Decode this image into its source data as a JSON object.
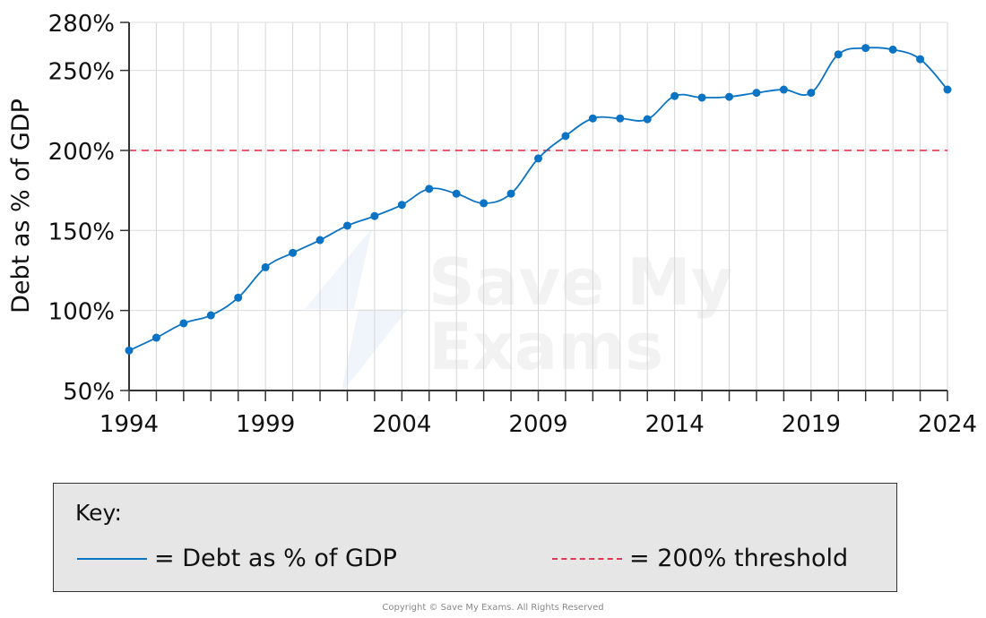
{
  "chart_data": {
    "type": "line",
    "title": "",
    "xlabel": "",
    "ylabel": "Debt as % of GDP",
    "x": [
      1994,
      1995,
      1996,
      1997,
      1998,
      1999,
      2000,
      2001,
      2002,
      2003,
      2004,
      2005,
      2006,
      2007,
      2008,
      2009,
      2010,
      2011,
      2012,
      2013,
      2014,
      2015,
      2016,
      2017,
      2018,
      2019,
      2020,
      2021,
      2022,
      2023,
      2024
    ],
    "series": [
      {
        "name": "Debt as % of GDP",
        "color": "#0a73c4",
        "values": [
          75,
          83,
          92,
          97,
          108,
          127,
          136,
          144,
          153,
          159,
          166,
          176,
          173,
          167,
          173,
          195,
          209,
          220,
          220,
          219.5,
          234,
          233,
          233.5,
          236,
          238,
          236,
          260,
          264,
          263,
          257,
          238
        ]
      }
    ],
    "reference_line": {
      "name": "200% threshold",
      "value": 200,
      "color": "#e0384f",
      "style": "dashed"
    },
    "xlim": [
      1994,
      2024
    ],
    "ylim": [
      50,
      280
    ],
    "x_tick_labels": [
      "1994",
      "1999",
      "2004",
      "2009",
      "2014",
      "2019",
      "2024"
    ],
    "y_ticks": [
      50,
      100,
      150,
      200,
      250,
      280
    ],
    "y_tick_labels": [
      "50%",
      "100%",
      "150%",
      "200%",
      "250%",
      "280%"
    ],
    "grid": true,
    "legend_placement": "bottom"
  },
  "key": {
    "title": "Key:",
    "items": [
      {
        "label": "= Debt as % of GDP",
        "color": "#0a73c4",
        "style": "solid"
      },
      {
        "label": "= 200% threshold",
        "color": "#e0384f",
        "style": "dashed"
      }
    ]
  },
  "watermark": "Save My Exams",
  "copyright": "Copyright © Save My Exams. All Rights Reserved"
}
